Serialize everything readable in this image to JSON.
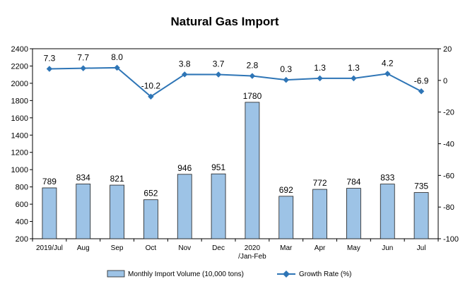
{
  "chart_data": {
    "type": "bar",
    "title": "Natural Gas Import",
    "categories": [
      [
        "2019/Jul"
      ],
      [
        "Aug"
      ],
      [
        "Sep"
      ],
      [
        "Oct"
      ],
      [
        "Nov"
      ],
      [
        "Dec"
      ],
      [
        "2020",
        "/Jan-Feb"
      ],
      [
        "Mar"
      ],
      [
        "Apr"
      ],
      [
        "May"
      ],
      [
        "Jun"
      ],
      [
        "Jul"
      ]
    ],
    "series": [
      {
        "name": "Monthly Import Volume (10,000 tons)",
        "type": "bar",
        "axis": "left",
        "color": "#9dc3e6",
        "edge_color": "#1f1f1f",
        "values": [
          789,
          834,
          821,
          652,
          946,
          951,
          1780,
          692,
          772,
          784,
          833,
          735
        ],
        "labels": [
          "789",
          "834",
          "821",
          "652",
          "946",
          "951",
          "1780",
          "692",
          "772",
          "784",
          "833",
          "735"
        ]
      },
      {
        "name": "Growth Rate (%)",
        "type": "line",
        "axis": "right",
        "color": "#2e75b6",
        "values": [
          7.3,
          7.7,
          8.0,
          -10.2,
          3.8,
          3.7,
          2.8,
          0.3,
          1.3,
          1.3,
          4.2,
          -6.9
        ],
        "labels": [
          "7.3",
          "7.7",
          "8.0",
          "-10.2",
          "3.8",
          "3.7",
          "2.8",
          "0.3",
          "1.3",
          "1.3",
          "4.2",
          "-6.9"
        ]
      }
    ],
    "y_left": {
      "min": 200,
      "max": 2400,
      "ticks": [
        200,
        400,
        600,
        800,
        1000,
        1200,
        1400,
        1600,
        1800,
        2000,
        2200,
        2400
      ]
    },
    "y_right": {
      "min": -100,
      "max": 20,
      "ticks": [
        -100,
        -80,
        -60,
        -40,
        -20,
        0,
        20
      ]
    },
    "grid": false,
    "legend_position": "bottom"
  }
}
